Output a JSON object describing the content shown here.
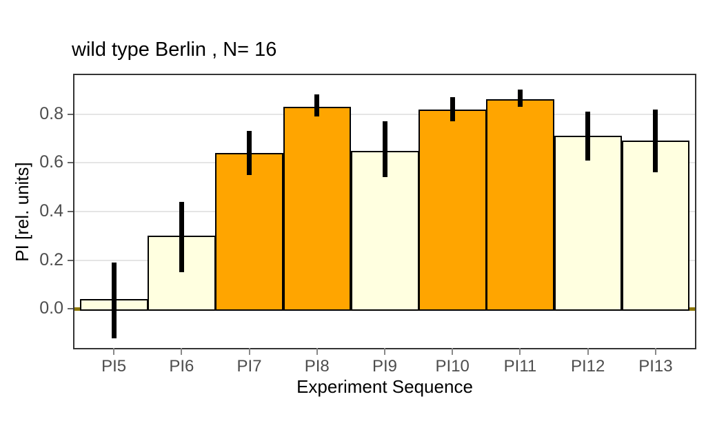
{
  "chart_data": {
    "type": "bar",
    "title": "wild type Berlin , N= 16",
    "xlabel": "Experiment Sequence",
    "ylabel": "PI [rel. units]",
    "categories": [
      "PI5",
      "PI6",
      "PI7",
      "PI8",
      "PI9",
      "PI10",
      "PI11",
      "PI12",
      "PI13"
    ],
    "values": [
      0.04,
      0.3,
      0.64,
      0.83,
      0.65,
      0.82,
      0.86,
      0.71,
      0.69
    ],
    "error_low": [
      -0.12,
      0.15,
      0.55,
      0.79,
      0.54,
      0.77,
      0.83,
      0.61,
      0.56
    ],
    "error_high": [
      0.19,
      0.44,
      0.73,
      0.88,
      0.77,
      0.87,
      0.9,
      0.81,
      0.82
    ],
    "bar_colors": [
      "#FFFFE0",
      "#FFFFE0",
      "#FFA500",
      "#FFA500",
      "#FFFFE0",
      "#FFA500",
      "#FFA500",
      "#FFFFE0",
      "#FFFFE0"
    ],
    "ytick_labels": [
      "0.0",
      "0.2",
      "0.4",
      "0.6",
      "0.8"
    ],
    "ytick_values": [
      0.0,
      0.2,
      0.4,
      0.6,
      0.8
    ],
    "ylim": [
      -0.16,
      0.96
    ],
    "grid": "major-y-only",
    "legend_position": "none",
    "colors": {
      "orange_fill": "#FFA500",
      "cream_fill": "#FFFFE0",
      "bar_outline": "#000000",
      "error_bar": "#000000",
      "zero_line": "#8B7500",
      "grid_line": "#E5E5E5",
      "axis_text": "#4D4D4D",
      "axis_title": "#000000",
      "panel_border": "#333333",
      "background": "#FFFFFF"
    }
  }
}
